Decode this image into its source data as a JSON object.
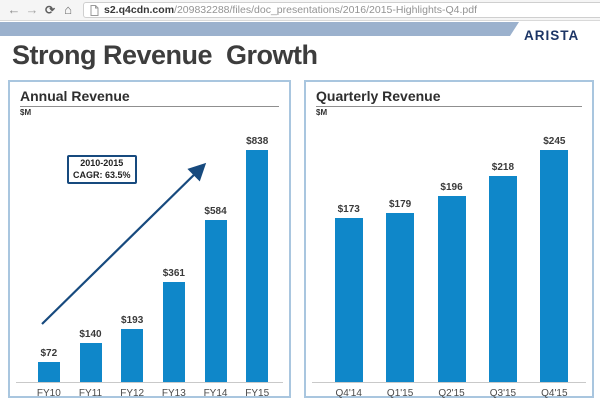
{
  "browser": {
    "url_domain": "s2.q4cdn.com",
    "url_path": "/209832288/files/doc_presentations/2016/2015-Highlights-Q4.pdf",
    "back_glyph": "←",
    "forward_glyph": "→",
    "refresh_glyph": "⟳",
    "home_glyph": "⌂"
  },
  "slide": {
    "logo": "ARISTA",
    "title": "Strong Revenue  Growth"
  },
  "colors": {
    "bar": "#0f87c9",
    "navy": "#174a7e",
    "banner": "#9bb1cd",
    "logo_navy": "#1c3566",
    "panel_border": "#a9c6df"
  },
  "chart_data": [
    {
      "type": "bar",
      "title": "Annual Revenue",
      "unit_label": "$M",
      "categories": [
        "FY10",
        "FY11",
        "FY12",
        "FY13",
        "FY14",
        "FY15"
      ],
      "values": [
        72,
        140,
        193,
        361,
        584,
        838
      ],
      "value_labels": [
        "$72",
        "$140",
        "$193",
        "$361",
        "$584",
        "$838"
      ],
      "ylim": [
        0,
        880
      ],
      "grid": false,
      "annotation_line1": "2010-2015",
      "annotation_line2": "CAGR: 63.5%"
    },
    {
      "type": "bar",
      "title": "Quarterly Revenue",
      "unit_label": "$M",
      "categories": [
        "Q4'14",
        "Q1'15",
        "Q2'15",
        "Q3'15",
        "Q4'15"
      ],
      "values": [
        173,
        179,
        196,
        218,
        245
      ],
      "value_labels": [
        "$173",
        "$179",
        "$196",
        "$218",
        "$245"
      ],
      "ylim": [
        0,
        260
      ],
      "grid": false
    }
  ]
}
